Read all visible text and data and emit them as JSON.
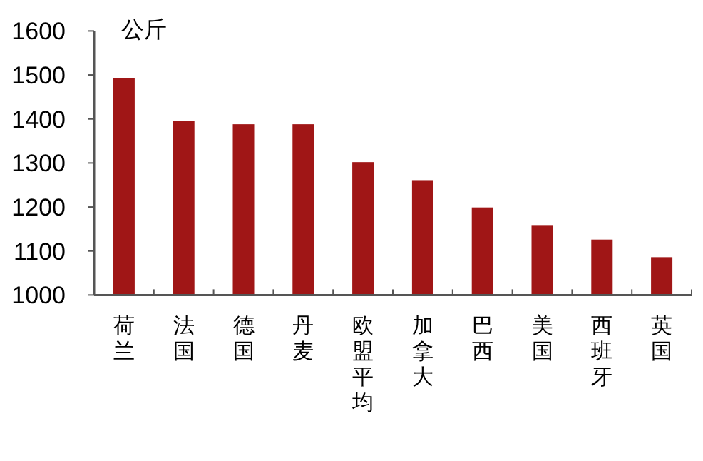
{
  "chart_data": {
    "type": "bar",
    "ylabel": "公斤",
    "categories": [
      "荷兰",
      "法国",
      "德国",
      "丹麦",
      "欧盟平均",
      "加拿大",
      "巴西",
      "美国",
      "西班牙",
      "英国"
    ],
    "values": [
      1493,
      1395,
      1388,
      1388,
      1302,
      1261,
      1199,
      1159,
      1126,
      1086
    ],
    "color": "#a01616",
    "ylim": [
      1000,
      1600
    ],
    "yticks": [
      1000,
      1100,
      1200,
      1300,
      1400,
      1500,
      1600
    ],
    "grid": false
  }
}
